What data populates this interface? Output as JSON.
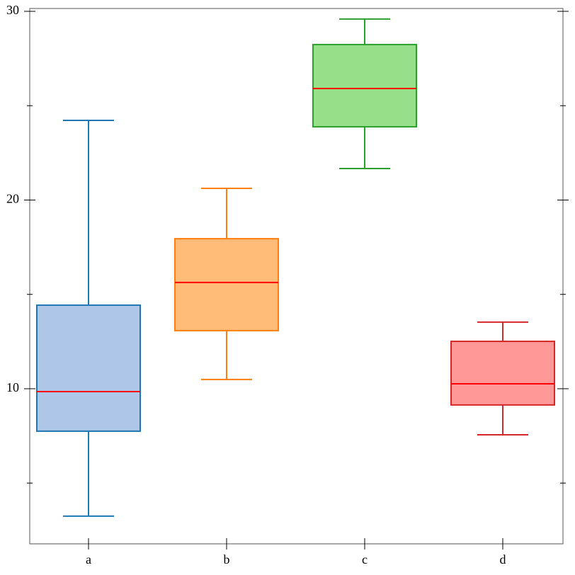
{
  "chart_data": {
    "type": "box",
    "categories": [
      "a",
      "b",
      "c",
      "d"
    ],
    "boxes": [
      {
        "whislo": 3.25,
        "q1": 7.75,
        "med": 9.85,
        "q3": 14.43,
        "whishi": 24.22,
        "color": "#1f77b4",
        "fill": "#aec7e8"
      },
      {
        "whislo": 10.49,
        "q1": 13.08,
        "med": 15.63,
        "q3": 17.95,
        "whishi": 20.62,
        "color": "#ff7f0e",
        "fill": "#ffbb78"
      },
      {
        "whislo": 21.67,
        "q1": 23.88,
        "med": 25.91,
        "q3": 28.24,
        "whishi": 29.59,
        "color": "#2ca02c",
        "fill": "#98df8a"
      },
      {
        "whislo": 7.56,
        "q1": 9.14,
        "med": 10.26,
        "q3": 12.51,
        "whishi": 13.53,
        "color": "#d62728",
        "fill": "#ff9896"
      }
    ],
    "median_color": "#ff0000",
    "ylim": [
      1.78,
      30.15
    ],
    "yticks": [
      10,
      20,
      30
    ],
    "yminorticks": [
      5,
      15,
      25
    ]
  }
}
